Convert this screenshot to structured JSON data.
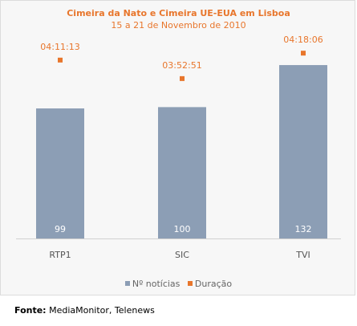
{
  "chart_data": {
    "type": "bar",
    "title": "Cimeira da Nato e Cimeira UE-EUA em Lisboa",
    "subtitle": "15 a 21 de Novembro de 2010",
    "categories": [
      "RTP1",
      "SIC",
      "TVI"
    ],
    "series": [
      {
        "name": "Nº notícias",
        "values": [
          99,
          100,
          132
        ],
        "color": "#8c9eb5",
        "kind": "bar"
      },
      {
        "name": "Duração",
        "values": [
          "04:11:13",
          "03:52:51",
          "04:18:06"
        ],
        "color": "#e8762c",
        "kind": "point"
      }
    ],
    "legend": "bottom",
    "grid": false
  },
  "source": {
    "label": "Fonte:",
    "text": "MediaMonitor, Telenews"
  }
}
